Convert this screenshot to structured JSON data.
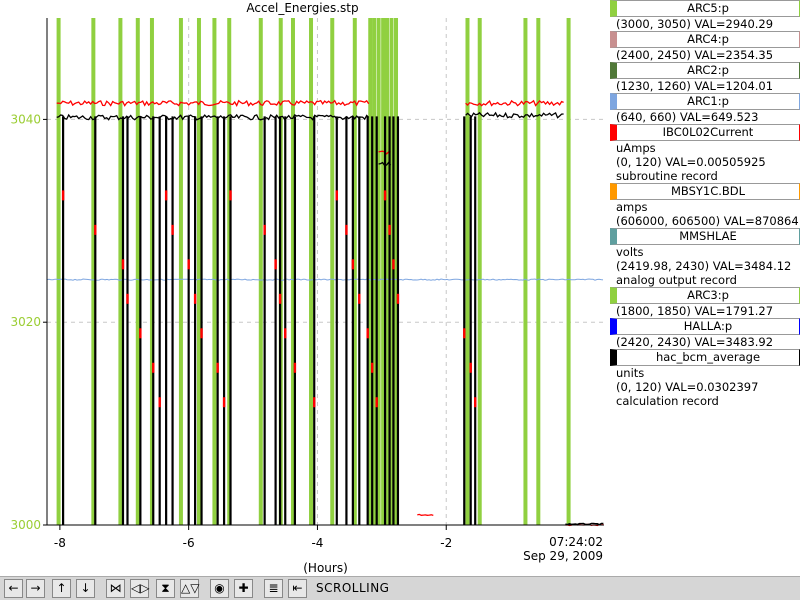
{
  "chart_data": {
    "type": "line",
    "title": "Accel_Energies.stp",
    "xlabel": "(Hours)",
    "end_time": "07:24:02",
    "end_date": "Sep 29, 2009",
    "x_ticks": [
      {
        "v": -8,
        "label": "-8"
      },
      {
        "v": -6,
        "label": "-6"
      },
      {
        "v": -4,
        "label": "-4"
      },
      {
        "v": -2,
        "label": "-2"
      }
    ],
    "xlim": [
      -8.2,
      0.45
    ],
    "ylim": [
      3000,
      3050
    ],
    "y_ticks": [
      {
        "v": 3000,
        "label": "3000"
      },
      {
        "v": 3020,
        "label": "3020"
      },
      {
        "v": 3040,
        "label": "3040"
      }
    ],
    "grid": "dashed",
    "legend_position": "right",
    "colors": {
      "red": "#ff0000",
      "black": "#000000",
      "green": "#90d040",
      "blue": "#7ea6e0",
      "axis_labels": "#9acd32"
    },
    "series": [
      {
        "name": "IBC0L02Current",
        "color": "#ff0000",
        "segments": [
          {
            "x": [
              -8.05,
              -3.2
            ],
            "y": 3041.6
          },
          {
            "x": [
              -3.05,
              -2.85
            ],
            "y": 3036.8
          },
          {
            "x": [
              -2.45,
              -2.18
            ],
            "y": 3001.0
          },
          {
            "x": [
              -1.7,
              -0.15
            ],
            "y": 3041.6
          },
          {
            "x": [
              -0.15,
              0.45
            ],
            "y": 3000.0
          }
        ]
      },
      {
        "name": "hac_bcm_average",
        "color": "#000000",
        "segments": [
          {
            "x": [
              -8.05,
              -3.2
            ],
            "y": 3040.2
          },
          {
            "x": [
              -3.05,
              -2.85
            ],
            "y": 3035.6
          },
          {
            "x": [
              -1.7,
              -0.15
            ],
            "y": 3040.4
          },
          {
            "x": [
              -0.15,
              0.45
            ],
            "y": 3000.1
          }
        ]
      },
      {
        "name": "MMSHLAE",
        "color": "#7ea6e0",
        "segments": [
          {
            "x": [
              -8.2,
              0.45
            ],
            "y": 3024.2
          }
        ]
      }
    ],
    "trips": [
      -7.95,
      -7.45,
      -7.02,
      -6.95,
      -6.75,
      -6.55,
      -6.45,
      -6.35,
      -6.25,
      -6.0,
      -5.9,
      -5.8,
      -5.55,
      -5.45,
      -5.35,
      -4.82,
      -4.65,
      -4.58,
      -4.5,
      -4.35,
      -4.05,
      -3.7,
      -3.55,
      -3.45,
      -3.35,
      -3.22,
      -3.15,
      -3.08,
      -2.95,
      -2.88,
      -2.82,
      -2.75,
      -1.72,
      -1.62,
      -1.55
    ],
    "green_bars": [
      -8.02,
      -7.48,
      -7.06,
      -6.79,
      -6.57,
      -6.12,
      -5.84,
      -5.6,
      -5.37,
      -4.88,
      -4.57,
      -4.38,
      -4.1,
      -3.77,
      -3.42,
      -3.18,
      -3.12,
      -3.05,
      -2.98,
      -2.92,
      -2.85,
      -2.78,
      -1.67,
      -1.48,
      -0.77,
      -0.57,
      -0.1
    ],
    "legend": [
      {
        "title": "ARC5:p",
        "color": "#90d040",
        "lines": [
          "(3000, 3050) VAL=2940.29"
        ]
      },
      {
        "title": "ARC4:p",
        "color": "#c89090",
        "lines": [
          "(2400, 2450) VAL=2354.35"
        ]
      },
      {
        "title": "ARC2:p",
        "color": "#507838",
        "lines": [
          "(1230, 1260) VAL=1204.01"
        ]
      },
      {
        "title": "ARC1:p",
        "color": "#7ea6e0",
        "lines": [
          "(640, 660) VAL=649.523"
        ]
      },
      {
        "title": "IBC0L02Current",
        "color": "#ff0000",
        "lines": [
          "uAmps",
          "(0, 120) VAL=0.00505925",
          "subroutine record"
        ]
      },
      {
        "title": "MBSY1C.BDL",
        "color": "#ff9900",
        "lines": [
          "amps",
          "(606000, 606500) VAL=870864"
        ]
      },
      {
        "title": "MMSHLAE",
        "color": "#5f9f9f",
        "lines": [
          "volts",
          "(2419.98, 2430) VAL=3484.12",
          "analog output record"
        ]
      },
      {
        "title": "ARC3:p",
        "color": "#90d040",
        "lines": [
          "(1800, 1850) VAL=1791.27"
        ]
      },
      {
        "title": "HALLA:p",
        "color": "#0000ff",
        "lines": [
          "(2420, 2430) VAL=3483.92"
        ]
      },
      {
        "title": "hac_bcm_average",
        "color": "#000000",
        "lines": [
          "units",
          "(0, 120) VAL=0.0302397",
          "calculation record"
        ]
      }
    ]
  },
  "toolbar": {
    "mode_label": "SCROLLING",
    "buttons": [
      {
        "name": "pan-left-button",
        "glyph": "←"
      },
      {
        "name": "pan-right-button",
        "glyph": "→"
      },
      {
        "name": "pan-up-button",
        "glyph": "↑"
      },
      {
        "name": "pan-down-button",
        "glyph": "↓"
      },
      {
        "name": "zoom-x-in-button",
        "glyph": "⋈"
      },
      {
        "name": "zoom-x-out-button",
        "glyph": "◁▷"
      },
      {
        "name": "zoom-y-in-button",
        "glyph": "⧗"
      },
      {
        "name": "zoom-y-out-button",
        "glyph": "△▽"
      },
      {
        "name": "reset-button",
        "glyph": "◉"
      },
      {
        "name": "crosshair-button",
        "glyph": "✚"
      },
      {
        "name": "overlay-button",
        "glyph": "≣"
      },
      {
        "name": "scroll-mode-button",
        "glyph": "⇤"
      }
    ]
  }
}
